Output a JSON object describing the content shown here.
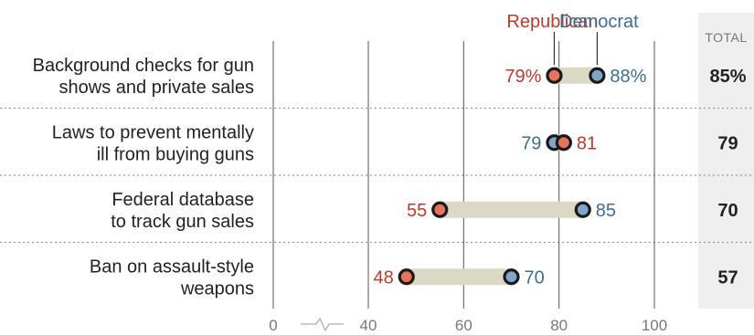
{
  "chart_data": {
    "type": "dot-range",
    "legend": {
      "republican": "Republican",
      "democrat": "Democrat"
    },
    "total_header": "TOTAL",
    "x_ticks": [
      {
        "value": 0,
        "label": "0"
      },
      {
        "value": 40,
        "label": "40"
      },
      {
        "value": 60,
        "label": "60"
      },
      {
        "value": 80,
        "label": "80"
      },
      {
        "value": 100,
        "label": "100"
      }
    ],
    "axis_break": true,
    "rows": [
      {
        "label_lines": [
          "Background checks for gun",
          "shows and private sales"
        ],
        "republican": 79,
        "republican_label": "79%",
        "democrat": 88,
        "democrat_label": "88%",
        "total": "85%"
      },
      {
        "label_lines": [
          "Laws to prevent mentally",
          "ill from buying guns"
        ],
        "republican": 81,
        "republican_label": "81",
        "democrat": 79,
        "democrat_label": "79",
        "total": "79"
      },
      {
        "label_lines": [
          "Federal database",
          "to track gun sales"
        ],
        "republican": 55,
        "republican_label": "55",
        "democrat": 85,
        "democrat_label": "85",
        "total": "70"
      },
      {
        "label_lines": [
          "Ban on assault-style",
          "weapons"
        ],
        "republican": 48,
        "republican_label": "48",
        "democrat": 70,
        "democrat_label": "70",
        "total": "57"
      }
    ],
    "colors": {
      "republican": "#e8735c",
      "republican_text": "#c0392b",
      "democrat": "#7fa6c9",
      "democrat_text": "#3d6d91",
      "range_bar": "#dcd8c6",
      "total_bg": "#efefef",
      "gridline": "#555555",
      "separator": "#999999",
      "text": "#222222",
      "axis_text": "#777777"
    }
  }
}
